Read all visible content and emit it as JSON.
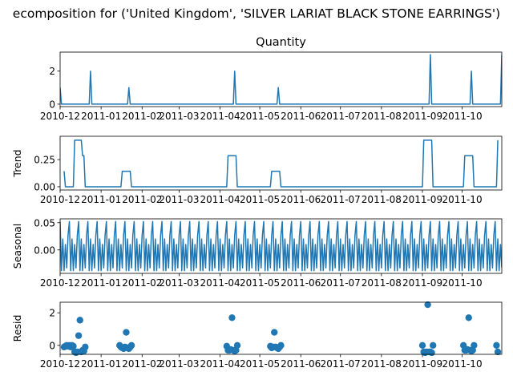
{
  "figure": {
    "suptitle": "ecomposition for ('United Kingdom', 'SILVER LARIAT BLACK STONE EARRINGS')",
    "line_color": "#1f77b4"
  },
  "chart_data": [
    {
      "type": "line",
      "title": "Quantity",
      "ylabel": "",
      "ylim": [
        -0.15,
        3.15
      ],
      "yticks": [
        0,
        2
      ],
      "xlim": [
        "2010-12-01",
        "2011-10-31"
      ],
      "xticks": [
        "2010-12",
        "2011-01",
        "2011-02",
        "2011-03",
        "2011-04",
        "2011-05",
        "2011-06",
        "2011-07",
        "2011-08",
        "2011-09",
        "2011-10"
      ],
      "x": [
        "2010-12-01",
        "2010-12-02",
        "2010-12-23",
        "2010-12-24",
        "2010-12-25",
        "2011-01-21",
        "2011-01-22",
        "2011-01-23",
        "2011-04-11",
        "2011-04-12",
        "2011-04-13",
        "2011-05-14",
        "2011-05-15",
        "2011-05-16",
        "2011-09-06",
        "2011-09-07",
        "2011-09-08",
        "2011-10-07",
        "2011-10-08",
        "2011-10-09",
        "2011-10-30",
        "2011-10-31"
      ],
      "y": [
        1,
        0,
        0,
        2,
        0,
        0,
        1,
        0,
        0,
        2,
        0,
        0,
        1,
        0,
        0,
        3,
        0,
        0,
        2,
        0,
        0,
        3
      ]
    },
    {
      "type": "line",
      "title": "",
      "ylabel": "Trend",
      "ylim": [
        -0.03,
        0.465
      ],
      "yticks": [
        0.0,
        0.25
      ],
      "ytick_labels": [
        "0.00",
        "0.25"
      ],
      "xlim": [
        "2010-12-01",
        "2011-10-31"
      ],
      "xticks": [
        "2010-12",
        "2011-01",
        "2011-02",
        "2011-03",
        "2011-04",
        "2011-05",
        "2011-06",
        "2011-07",
        "2011-08",
        "2011-09",
        "2011-10"
      ],
      "x": [
        "2010-12-04",
        "2010-12-05",
        "2010-12-11",
        "2010-12-12",
        "2010-12-17",
        "2010-12-18",
        "2010-12-19",
        "2010-12-20",
        "2011-01-16",
        "2011-01-17",
        "2011-01-23",
        "2011-01-24",
        "2011-04-06",
        "2011-04-07",
        "2011-04-13",
        "2011-04-14",
        "2011-05-09",
        "2011-05-10",
        "2011-05-16",
        "2011-05-17",
        "2011-09-01",
        "2011-09-02",
        "2011-09-08",
        "2011-09-09",
        "2011-10-02",
        "2011-10-03",
        "2011-10-09",
        "2011-10-10",
        "2011-10-27",
        "2011-10-28"
      ],
      "y": [
        0.143,
        0,
        0,
        0.429,
        0.429,
        0.286,
        0.286,
        0,
        0,
        0.143,
        0.143,
        0,
        0,
        0.286,
        0.286,
        0,
        0,
        0.143,
        0.143,
        0,
        0,
        0.429,
        0.429,
        0,
        0,
        0.286,
        0.286,
        0,
        0,
        0.429
      ]
    },
    {
      "type": "line",
      "title": "",
      "ylabel": "Seasonal",
      "ylim": [
        -0.043,
        0.057
      ],
      "yticks": [
        0.0,
        0.05
      ],
      "ytick_labels": [
        "0.00",
        "0.05"
      ],
      "xlim": [
        "2010-12-01",
        "2011-10-31"
      ],
      "xticks": [
        "2010-12",
        "2011-01",
        "2011-02",
        "2011-03",
        "2011-04",
        "2011-05",
        "2011-06",
        "2011-07",
        "2011-08",
        "2011-09",
        "2011-10"
      ],
      "period_days": 7,
      "weekly_pattern": [
        0.052,
        -0.038,
        0.02,
        -0.038,
        0.01,
        -0.033,
        0.027
      ],
      "start": "2010-12-01",
      "end": "2011-10-31"
    },
    {
      "type": "scatter",
      "title": "",
      "ylabel": "Resid",
      "ylim": [
        -0.55,
        2.65
      ],
      "yticks": [
        0,
        2
      ],
      "xlim": [
        "2010-12-01",
        "2011-10-31"
      ],
      "xticks": [
        "2010-12",
        "2011-01",
        "2011-02",
        "2011-03",
        "2011-04",
        "2011-05",
        "2011-06",
        "2011-07",
        "2011-08",
        "2011-09",
        "2011-10"
      ],
      "points": [
        [
          "2010-12-04",
          -0.1
        ],
        [
          "2010-12-05",
          -0.05
        ],
        [
          "2010-12-06",
          0.0
        ],
        [
          "2010-12-07",
          -0.05
        ],
        [
          "2010-12-08",
          0.0
        ],
        [
          "2010-12-09",
          -0.1
        ],
        [
          "2010-12-10",
          0.0
        ],
        [
          "2010-12-11",
          -0.05
        ],
        [
          "2010-12-12",
          -0.4
        ],
        [
          "2010-12-13",
          -0.45
        ],
        [
          "2010-12-14",
          -0.4
        ],
        [
          "2010-12-15",
          0.6
        ],
        [
          "2010-12-16",
          1.55
        ],
        [
          "2010-12-17",
          -0.4
        ],
        [
          "2010-12-18",
          -0.3
        ],
        [
          "2010-12-19",
          -0.35
        ],
        [
          "2010-12-20",
          -0.1
        ],
        [
          "2011-01-15",
          0.0
        ],
        [
          "2011-01-16",
          -0.1
        ],
        [
          "2011-01-17",
          -0.15
        ],
        [
          "2011-01-18",
          -0.2
        ],
        [
          "2011-01-19",
          -0.1
        ],
        [
          "2011-01-20",
          0.8
        ],
        [
          "2011-01-21",
          -0.15
        ],
        [
          "2011-01-22",
          -0.2
        ],
        [
          "2011-01-23",
          -0.1
        ],
        [
          "2011-01-24",
          0.0
        ],
        [
          "2011-04-06",
          -0.05
        ],
        [
          "2011-04-07",
          -0.3
        ],
        [
          "2011-04-08",
          -0.3
        ],
        [
          "2011-04-09",
          -0.25
        ],
        [
          "2011-04-10",
          1.7
        ],
        [
          "2011-04-11",
          -0.3
        ],
        [
          "2011-04-12",
          -0.35
        ],
        [
          "2011-04-13",
          -0.3
        ],
        [
          "2011-04-14",
          0.0
        ],
        [
          "2011-05-09",
          -0.05
        ],
        [
          "2011-05-10",
          -0.15
        ],
        [
          "2011-05-11",
          -0.1
        ],
        [
          "2011-05-12",
          0.8
        ],
        [
          "2011-05-13",
          -0.1
        ],
        [
          "2011-05-14",
          -0.15
        ],
        [
          "2011-05-15",
          -0.2
        ],
        [
          "2011-05-16",
          -0.1
        ],
        [
          "2011-05-17",
          0.0
        ],
        [
          "2011-09-01",
          0.0
        ],
        [
          "2011-09-02",
          -0.4
        ],
        [
          "2011-09-03",
          -0.45
        ],
        [
          "2011-09-04",
          -0.4
        ],
        [
          "2011-09-05",
          2.5
        ],
        [
          "2011-09-06",
          -0.4
        ],
        [
          "2011-09-07",
          -0.4
        ],
        [
          "2011-09-08",
          -0.45
        ],
        [
          "2011-09-09",
          0.0
        ],
        [
          "2011-10-02",
          0.0
        ],
        [
          "2011-10-03",
          -0.3
        ],
        [
          "2011-10-04",
          -0.3
        ],
        [
          "2011-10-05",
          -0.25
        ],
        [
          "2011-10-06",
          1.7
        ],
        [
          "2011-10-07",
          -0.3
        ],
        [
          "2011-10-08",
          -0.35
        ],
        [
          "2011-10-09",
          -0.3
        ],
        [
          "2011-10-10",
          0.0
        ],
        [
          "2011-10-27",
          0.0
        ],
        [
          "2011-10-28",
          -0.4
        ]
      ]
    }
  ]
}
